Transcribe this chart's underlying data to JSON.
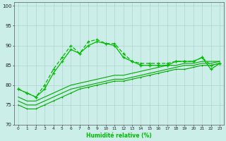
{
  "x": [
    0,
    1,
    2,
    3,
    4,
    5,
    6,
    7,
    8,
    9,
    10,
    11,
    12,
    13,
    14,
    15,
    16,
    17,
    18,
    19,
    20,
    21,
    22,
    23
  ],
  "line_upper1": [
    79,
    78,
    77,
    79,
    83,
    86,
    89,
    88,
    90,
    91,
    90.5,
    90,
    87,
    86,
    85,
    85,
    85,
    85,
    86,
    86,
    86,
    87,
    84,
    85.5
  ],
  "line_upper2": [
    79,
    78,
    77,
    80,
    84,
    87,
    90,
    88,
    91,
    91.5,
    90.5,
    90.5,
    88,
    86,
    85.5,
    85.5,
    85.5,
    85.5,
    86,
    86,
    86,
    87,
    85,
    85.5
  ],
  "line_lower1": [
    75,
    74,
    74,
    75,
    76,
    77,
    78,
    79,
    79.5,
    80,
    80.5,
    81,
    81,
    81.5,
    82,
    82.5,
    83,
    83.5,
    84,
    84,
    84.5,
    85,
    85,
    85.5
  ],
  "line_lower2": [
    76,
    75,
    75,
    76,
    77,
    78,
    79,
    79.5,
    80,
    80.5,
    81,
    81.5,
    81.5,
    82,
    82.5,
    83,
    83.5,
    84,
    84.5,
    85,
    85,
    85.5,
    85.5,
    86
  ],
  "line_lower3": [
    77,
    76,
    76,
    77,
    78,
    79,
    80,
    80.5,
    81,
    81.5,
    82,
    82.5,
    82.5,
    83,
    83.5,
    84,
    84.5,
    85,
    85,
    85.5,
    85.5,
    86,
    86,
    86
  ],
  "yticks": [
    70,
    75,
    80,
    85,
    90,
    95,
    100
  ],
  "xlim": [
    -0.5,
    23.5
  ],
  "ylim": [
    70,
    101
  ],
  "bg_color": "#cceee8",
  "grid_color": "#aacccc",
  "line_color_upper": "#00bb00",
  "line_color_lower": "#00aa00",
  "xlabel": "Humidité relative (%)"
}
